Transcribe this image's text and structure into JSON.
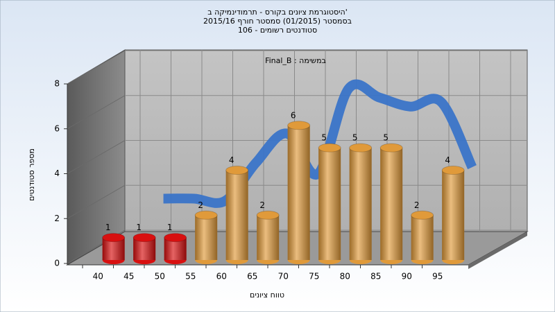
{
  "chart_data": {
    "type": "bar3d",
    "title": [
      "היסטוגרמת ציונים בקורס - תרמודינמיקה ב'",
      "בסמסטר  (01/2015)  סמסטר חורף 2015/16",
      "סטודנטים רשומים - 106"
    ],
    "subtitle": "Final_B : במשימה",
    "y_label": "מספר סטודנטים",
    "x_label": "טווח ציונים",
    "categories": [
      "40",
      "45",
      "50",
      "55",
      "60",
      "65",
      "70",
      "75",
      "80",
      "85",
      "90",
      "95"
    ],
    "values": [
      1,
      1,
      1,
      2,
      4,
      2,
      6,
      5,
      5,
      5,
      2,
      4
    ],
    "colors": [
      "#d81010",
      "#d81010",
      "#d81010",
      "#e09a3a",
      "#e09a3a",
      "#e09a3a",
      "#e09a3a",
      "#e09a3a",
      "#e09a3a",
      "#e09a3a",
      "#e09a3a",
      "#e09a3a"
    ],
    "curve": {
      "color": "#3a74c8",
      "values": [
        null,
        2,
        2,
        1.9,
        3.6,
        4.9,
        3.1,
        6.9,
        6.5,
        6.1,
        6.3,
        3.4
      ]
    },
    "ylim": [
      0,
      8
    ],
    "yticks": [
      0,
      2,
      4,
      6,
      8
    ],
    "grid": true
  }
}
